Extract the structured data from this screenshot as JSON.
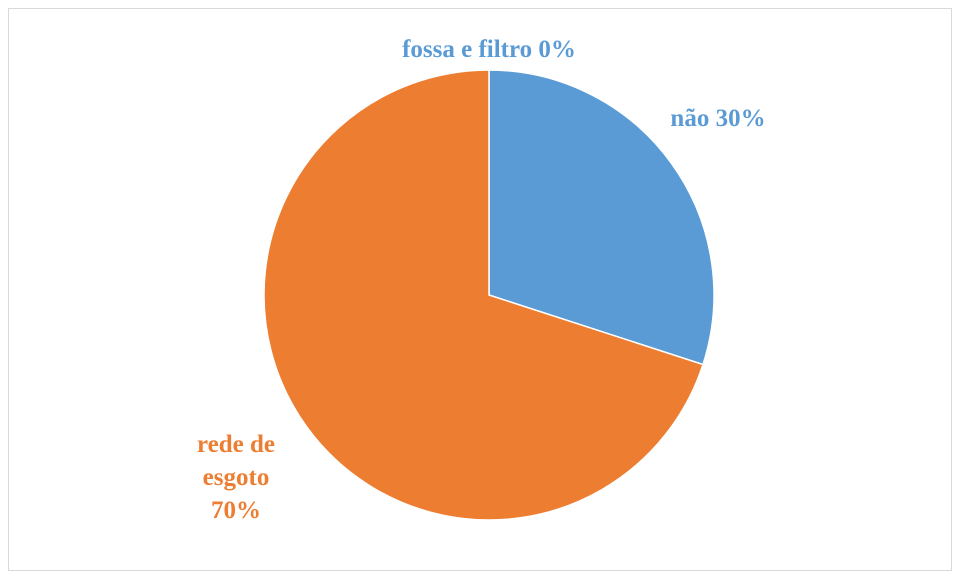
{
  "chart_data": {
    "type": "pie",
    "categories": [
      "fossa e filtro",
      "não",
      "rede de esgoto"
    ],
    "values": [
      0,
      30,
      70
    ],
    "value_labels": [
      "0%",
      "30%",
      "70%"
    ],
    "colors": [
      "#5b9bd5",
      "#5b9bd5",
      "#ed7d31"
    ]
  }
}
